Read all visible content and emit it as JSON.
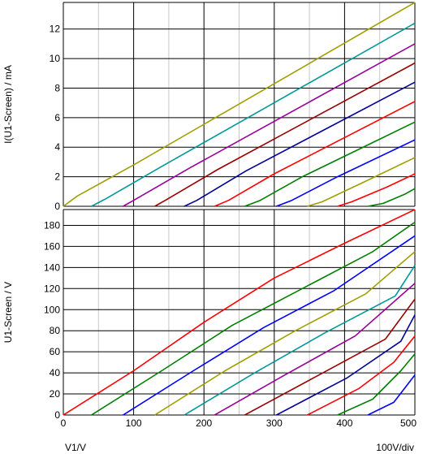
{
  "chart_data": [
    {
      "type": "line",
      "ylabel": "I(U1-Screen) / mA",
      "xlim": [
        0,
        500
      ],
      "ylim": [
        0,
        13.8
      ],
      "x_ticks": [
        0,
        100,
        200,
        300,
        400,
        500
      ],
      "y_ticks": [
        0,
        2,
        4,
        6,
        8,
        10,
        12
      ],
      "y_tick_labels": [
        "0",
        "2",
        "4",
        "6",
        "8",
        "10",
        "12"
      ],
      "grid": true,
      "series": [
        {
          "color": "#a0a000",
          "points": [
            [
              0,
              0
            ],
            [
              20,
              0.7
            ],
            [
              100,
              2.8
            ],
            [
              500,
              13.8
            ]
          ]
        },
        {
          "color": "#009999",
          "points": [
            [
              40,
              0
            ],
            [
              60,
              0.5
            ],
            [
              140,
              2.7
            ],
            [
              500,
              12.4
            ]
          ]
        },
        {
          "color": "#990099",
          "points": [
            [
              85,
              0
            ],
            [
              100,
              0.4
            ],
            [
              180,
              2.6
            ],
            [
              500,
              11.0
            ]
          ]
        },
        {
          "color": "#990000",
          "points": [
            [
              130,
              0
            ],
            [
              145,
              0.4
            ],
            [
              220,
              2.5
            ],
            [
              500,
              9.7
            ]
          ]
        },
        {
          "color": "#000099",
          "points": [
            [
              172,
              0
            ],
            [
              190,
              0.4
            ],
            [
              260,
              2.4
            ],
            [
              500,
              8.4
            ]
          ]
        },
        {
          "color": "#ff0000",
          "points": [
            [
              215,
              0
            ],
            [
              235,
              0.4
            ],
            [
              300,
              2.2
            ],
            [
              500,
              7.1
            ]
          ]
        },
        {
          "color": "#008000",
          "points": [
            [
              258,
              0
            ],
            [
              280,
              0.4
            ],
            [
              340,
              2.0
            ],
            [
              500,
              5.7
            ]
          ]
        },
        {
          "color": "#0000ff",
          "points": [
            [
              303,
              0
            ],
            [
              325,
              0.4
            ],
            [
              390,
              2.0
            ],
            [
              500,
              4.5
            ]
          ]
        },
        {
          "color": "#a0a000",
          "points": [
            [
              347,
              0
            ],
            [
              368,
              0.3
            ],
            [
              430,
              1.7
            ],
            [
              500,
              3.3
            ]
          ]
        },
        {
          "color": "#ff0000",
          "points": [
            [
              390,
              0
            ],
            [
              410,
              0.3
            ],
            [
              460,
              1.3
            ],
            [
              500,
              2.2
            ]
          ]
        },
        {
          "color": "#008000",
          "points": [
            [
              433,
              0
            ],
            [
              455,
              0.2
            ],
            [
              485,
              0.8
            ],
            [
              500,
              1.2
            ]
          ]
        }
      ]
    },
    {
      "type": "line",
      "xlabel": "V1/V",
      "x_division": "100V/div",
      "ylabel": "U1-Screen / V",
      "xlim": [
        0,
        500
      ],
      "ylim": [
        0,
        195
      ],
      "x_ticks": [
        0,
        100,
        200,
        300,
        400,
        500
      ],
      "x_tick_labels": [
        "0",
        "100",
        "200",
        "300",
        "400",
        "500"
      ],
      "y_ticks": [
        0,
        20,
        40,
        60,
        80,
        100,
        120,
        140,
        160,
        180
      ],
      "y_tick_labels": [
        "0",
        "20",
        "40",
        "60",
        "80",
        "100",
        "120",
        "140",
        "160",
        "180"
      ],
      "grid": true,
      "series": [
        {
          "color": "#ff0000",
          "points": [
            [
              0,
              0
            ],
            [
              100,
              42
            ],
            [
              200,
              88
            ],
            [
              300,
              130
            ],
            [
              400,
              163
            ],
            [
              500,
              195
            ]
          ]
        },
        {
          "color": "#008000",
          "points": [
            [
              40,
              0
            ],
            [
              140,
              42
            ],
            [
              240,
              85
            ],
            [
              340,
              120
            ],
            [
              440,
              155
            ],
            [
              500,
              183
            ]
          ]
        },
        {
          "color": "#0000ff",
          "points": [
            [
              85,
              0
            ],
            [
              185,
              42
            ],
            [
              285,
              83
            ],
            [
              385,
              118
            ],
            [
              500,
              170
            ]
          ]
        },
        {
          "color": "#a0a000",
          "points": [
            [
              130,
              0
            ],
            [
              230,
              42
            ],
            [
              330,
              80
            ],
            [
              430,
              115
            ],
            [
              500,
              155
            ]
          ]
        },
        {
          "color": "#009999",
          "points": [
            [
              172,
              0
            ],
            [
              272,
              40
            ],
            [
              372,
              78
            ],
            [
              472,
              113
            ],
            [
              500,
              142
            ]
          ]
        },
        {
          "color": "#990099",
          "points": [
            [
              215,
              0
            ],
            [
              315,
              38
            ],
            [
              415,
              75
            ],
            [
              500,
              125
            ]
          ]
        },
        {
          "color": "#990000",
          "points": [
            [
              258,
              0
            ],
            [
              358,
              36
            ],
            [
              458,
              72
            ],
            [
              500,
              110
            ]
          ]
        },
        {
          "color": "#000099",
          "points": [
            [
              303,
              0
            ],
            [
              403,
              35
            ],
            [
              480,
              70
            ],
            [
              500,
              95
            ]
          ]
        },
        {
          "color": "#ff0000",
          "points": [
            [
              347,
              0
            ],
            [
              420,
              25
            ],
            [
              470,
              50
            ],
            [
              500,
              75
            ]
          ]
        },
        {
          "color": "#008000",
          "points": [
            [
              390,
              0
            ],
            [
              440,
              15
            ],
            [
              480,
              42
            ],
            [
              500,
              58
            ]
          ]
        },
        {
          "color": "#0000ff",
          "points": [
            [
              433,
              0
            ],
            [
              470,
              12
            ],
            [
              500,
              38
            ]
          ]
        }
      ]
    }
  ]
}
